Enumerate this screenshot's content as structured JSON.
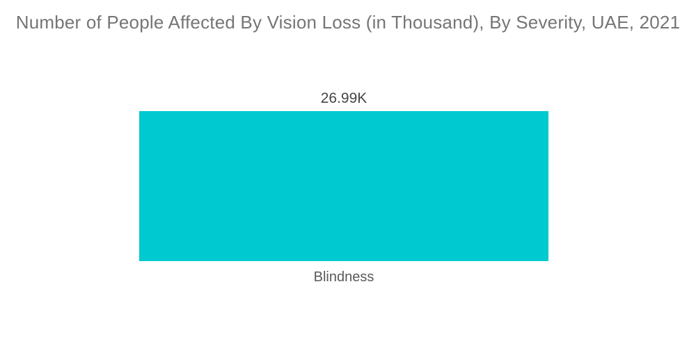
{
  "header": {
    "title": "Number of People Affected By Vision Loss (in Thousand), By Severity, UAE, 2021"
  },
  "colors": {
    "background": "#ffffff",
    "title_text": "#757575",
    "value_text": "#454545",
    "category_text": "#595959",
    "bar_fill": "#00C9CF"
  },
  "chart_data": {
    "type": "bar",
    "orientation": "vertical",
    "title": "Number of People Affected By Vision Loss (in Thousand), By Severity, UAE, 2021",
    "categories": [
      "Blindness"
    ],
    "values": [
      26.99
    ],
    "value_labels": [
      "26.99K"
    ],
    "unit": "Thousand",
    "xlabel": "",
    "ylabel": "",
    "ylim": [
      0,
      26.99
    ],
    "grid": false,
    "legend": "none",
    "axes_visible": false,
    "bar_color": "#00C9CF"
  }
}
